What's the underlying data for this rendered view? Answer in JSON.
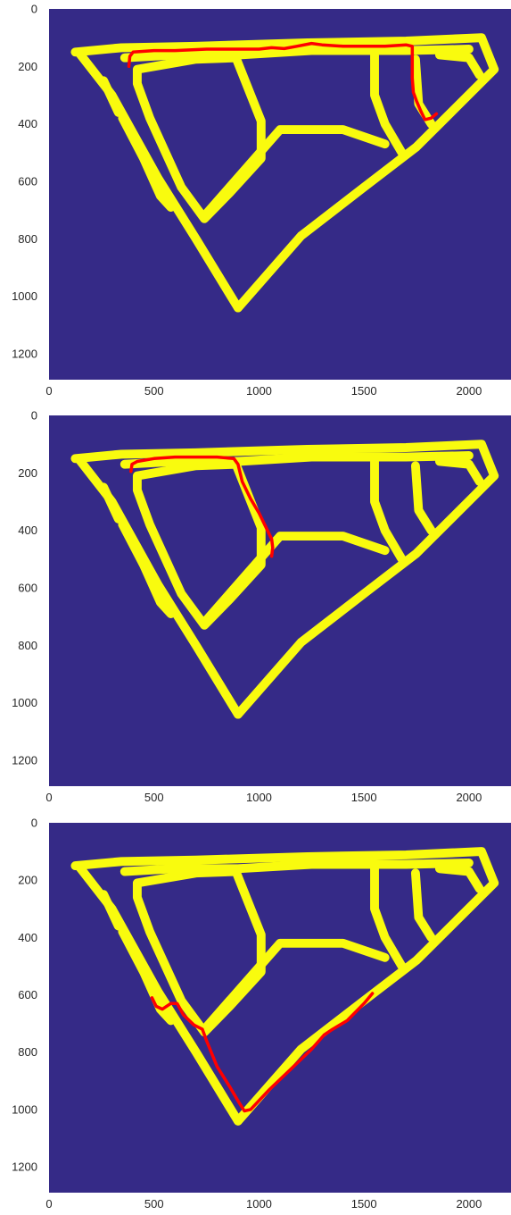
{
  "colors": {
    "background": "#352a87",
    "road": "#f9fb0e",
    "path": "#ff0000",
    "tick_text": "#262626"
  },
  "chart_data": [
    {
      "type": "image",
      "xlim": [
        0,
        2200
      ],
      "ylim": [
        0,
        1290
      ],
      "xticks": [
        "0",
        "500",
        "1000",
        "1500",
        "2000"
      ],
      "yticks": [
        "0",
        "200",
        "400",
        "600",
        "800",
        "1000",
        "1200"
      ],
      "grid": false,
      "path": {
        "x": [
          380,
          385,
          400,
          500,
          600,
          750,
          900,
          1000,
          1060,
          1120,
          1180,
          1250,
          1300,
          1400,
          1500,
          1600,
          1700,
          1730,
          1730,
          1735,
          1750,
          1770,
          1790,
          1820,
          1845
        ],
        "y": [
          200,
          165,
          150,
          145,
          145,
          140,
          140,
          140,
          135,
          138,
          130,
          120,
          125,
          130,
          130,
          130,
          125,
          130,
          240,
          290,
          320,
          355,
          385,
          380,
          365
        ]
      }
    },
    {
      "type": "image",
      "xlim": [
        0,
        2200
      ],
      "ylim": [
        0,
        1290
      ],
      "xticks": [
        "0",
        "500",
        "1000",
        "1500",
        "2000"
      ],
      "yticks": [
        "0",
        "200",
        "400",
        "600",
        "800",
        "1000",
        "1200"
      ],
      "grid": false,
      "path": {
        "x": [
          390,
          395,
          420,
          500,
          600,
          700,
          800,
          880,
          900,
          920,
          960,
          1000,
          1040,
          1060,
          1065,
          1060
        ],
        "y": [
          195,
          170,
          160,
          150,
          145,
          145,
          145,
          150,
          170,
          230,
          290,
          340,
          400,
          430,
          460,
          490
        ]
      }
    },
    {
      "type": "image",
      "xlim": [
        0,
        2200
      ],
      "ylim": [
        0,
        1290
      ],
      "xticks": [
        "0",
        "500",
        "1000",
        "1500",
        "2000"
      ],
      "yticks": [
        "0",
        "200",
        "400",
        "600",
        "800",
        "1000",
        "1200"
      ],
      "grid": false,
      "path": {
        "x": [
          490,
          510,
          540,
          580,
          610,
          640,
          690,
          730,
          750,
          800,
          860,
          900,
          930,
          960,
          1050,
          1150,
          1250,
          1310,
          1350,
          1420,
          1500,
          1540
        ],
        "y": [
          610,
          640,
          650,
          630,
          630,
          670,
          705,
          720,
          760,
          850,
          920,
          970,
          1005,
          1000,
          930,
          860,
          790,
          740,
          720,
          690,
          630,
          595
        ]
      }
    }
  ]
}
